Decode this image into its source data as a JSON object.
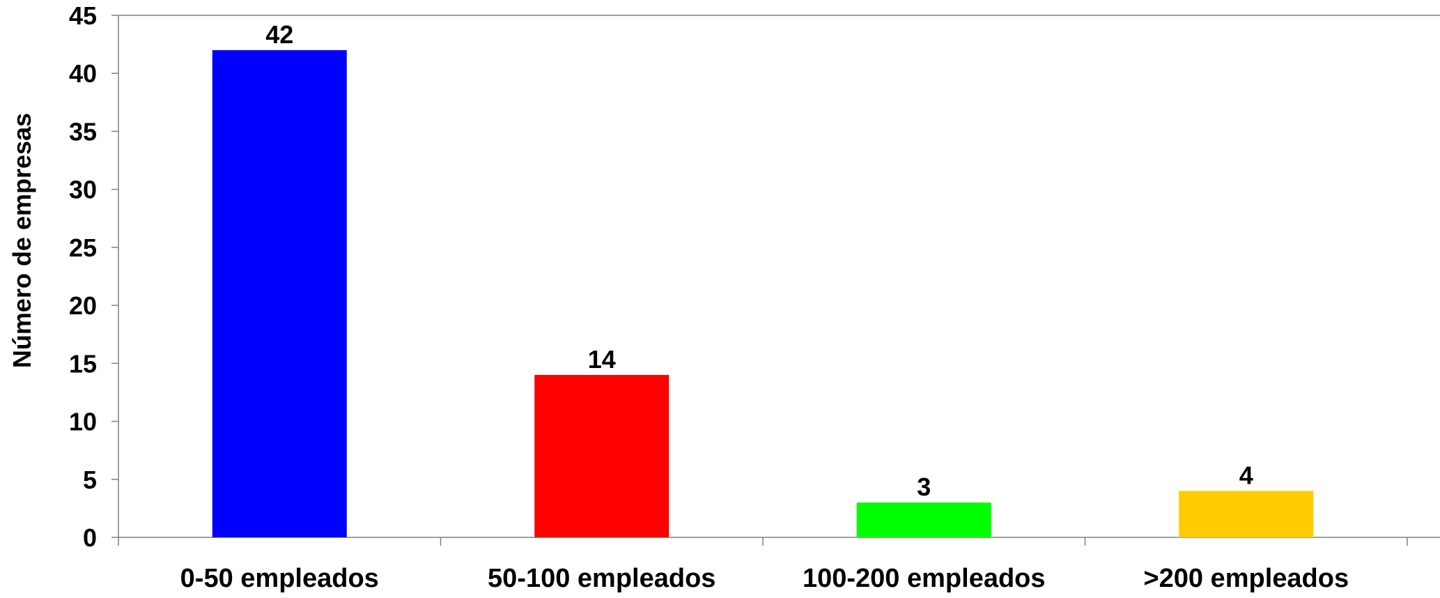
{
  "chart_data": {
    "type": "bar",
    "title": "",
    "xlabel": "",
    "ylabel": "Número de empresas",
    "categories": [
      "0-50 empleados",
      "50-100 empleados",
      "100-200 empleados",
      ">200 empleados"
    ],
    "values": [
      42,
      14,
      3,
      4
    ],
    "data_labels": [
      "42",
      "14",
      "3",
      "4"
    ],
    "bar_colors": [
      "#0000ff",
      "#ff0000",
      "#00ff00",
      "#ffcc00"
    ],
    "ylim": [
      0,
      45
    ],
    "yticks": [
      0,
      5,
      10,
      15,
      20,
      25,
      30,
      35,
      40,
      45
    ],
    "grid": false,
    "legend": "none"
  }
}
